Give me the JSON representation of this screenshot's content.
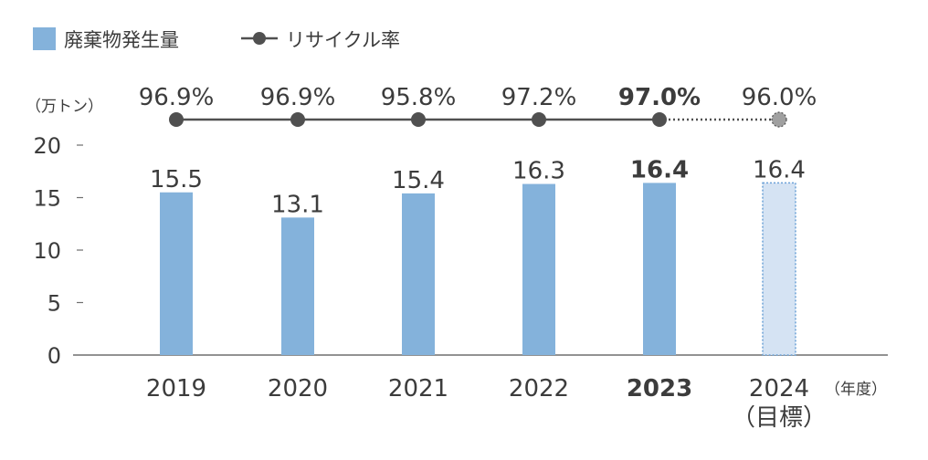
{
  "legend": {
    "bar_series": "廃棄物発生量",
    "line_series": "リサイクル率"
  },
  "unit_label": "（万トン）",
  "x_unit": "（年度）",
  "target_note": "（目標）",
  "colors": {
    "bar": "#84b2db",
    "bar_target": "#d5e3f3",
    "bar_target_border": "#6ba1d6",
    "line": "#505050",
    "line_target_marker": "#a0a0a0",
    "axis": "#6e6e6e"
  },
  "chart_data": {
    "type": "bar",
    "categories": [
      "2019",
      "2020",
      "2021",
      "2022",
      "2023",
      "2024"
    ],
    "ylim": [
      0,
      20
    ],
    "yticks": [
      0,
      5,
      10,
      15,
      20
    ],
    "series": [
      {
        "name": "廃棄物発生量",
        "type": "bar",
        "values": [
          15.5,
          13.1,
          15.4,
          16.3,
          16.4,
          16.4
        ],
        "labels": [
          "15.5",
          "13.1",
          "15.4",
          "16.3",
          "16.4",
          "16.4"
        ]
      },
      {
        "name": "リサイクル率",
        "type": "line",
        "values": [
          96.9,
          96.9,
          95.8,
          97.2,
          97.0,
          96.0
        ],
        "labels": [
          "96.9%",
          "96.9%",
          "95.8%",
          "97.2%",
          "97.0%",
          "96.0%"
        ]
      }
    ],
    "highlight_category": "2023",
    "target_category": "2024"
  }
}
